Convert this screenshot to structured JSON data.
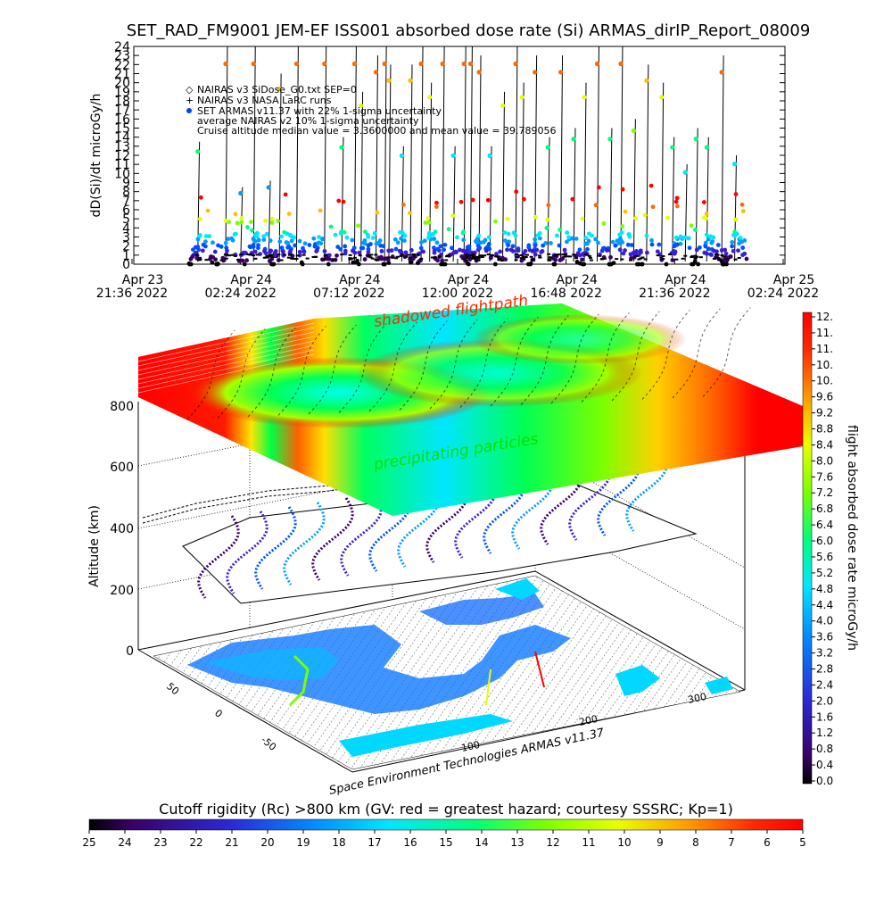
{
  "title": "SET_RAD_FM9001  JEM-EF ISS001 absorbed dose rate (Si) ARMAS_dirIP_Report_08009",
  "chart_data": [
    {
      "type": "scatter",
      "ylabel": "dD(Si)/dt microGy/h",
      "ylim": [
        0,
        24
      ],
      "yticks": [
        "0",
        "1",
        "2",
        "3",
        "4",
        "5",
        "6",
        "7",
        "8",
        "9",
        "10",
        "11",
        "12",
        "13",
        "14",
        "15",
        "16",
        "17",
        "18",
        "19",
        "20",
        "21",
        "22",
        "23",
        "24"
      ],
      "xticks": [
        {
          "line1": "Apr 23",
          "line2": "21:36 2022"
        },
        {
          "line1": "Apr 24",
          "line2": "02:24 2022"
        },
        {
          "line1": "Apr 24",
          "line2": "07:12 2022"
        },
        {
          "line1": "Apr 24",
          "line2": "12:00 2022"
        },
        {
          "line1": "Apr 24",
          "line2": "16:48 2022"
        },
        {
          "line1": "Apr 24",
          "line2": "21:36 2022"
        },
        {
          "line1": "Apr 25",
          "line2": "02:24 2022"
        }
      ],
      "legend": [
        {
          "symbol": "◇",
          "text": "NAIRAS v3 SiDose_G0.txt SEP=0"
        },
        {
          "symbol": "+",
          "text": "NAIRAS v3 NASA LaRC runs"
        },
        {
          "symbol": "●",
          "text": "SET ARMAS v11.37 with 22% 1-sigma uncertainty"
        },
        {
          "symbol": "",
          "text": "average NAIRAS v2 10% 1-sigma uncertainty"
        },
        {
          "symbol": "",
          "text": "Cruise altitude median value = 3.3600000 and mean value = 39.789056"
        }
      ],
      "spikes": [
        {
          "x": 0.4,
          "y": 13.5
        },
        {
          "x": 1.7,
          "y": 24
        },
        {
          "x": 2.4,
          "y": 8.5
        },
        {
          "x": 3.0,
          "y": 24
        },
        {
          "x": 3.7,
          "y": 9.2
        },
        {
          "x": 4.2,
          "y": 21
        },
        {
          "x": 5.0,
          "y": 24
        },
        {
          "x": 6.3,
          "y": 24
        },
        {
          "x": 7.1,
          "y": 14
        },
        {
          "x": 7.7,
          "y": 24
        },
        {
          "x": 8.0,
          "y": 19
        },
        {
          "x": 8.7,
          "y": 23
        },
        {
          "x": 9.1,
          "y": 24
        },
        {
          "x": 9.3,
          "y": 22
        },
        {
          "x": 9.9,
          "y": 13
        },
        {
          "x": 10.3,
          "y": 22
        },
        {
          "x": 10.8,
          "y": 24
        },
        {
          "x": 11.2,
          "y": 20
        },
        {
          "x": 11.8,
          "y": 24
        },
        {
          "x": 12.3,
          "y": 13
        },
        {
          "x": 12.8,
          "y": 24
        },
        {
          "x": 13.1,
          "y": 24
        },
        {
          "x": 13.5,
          "y": 23
        },
        {
          "x": 14.0,
          "y": 13
        },
        {
          "x": 14.6,
          "y": 19
        },
        {
          "x": 15.2,
          "y": 24
        },
        {
          "x": 15.5,
          "y": 20
        },
        {
          "x": 16.1,
          "y": 23
        },
        {
          "x": 16.7,
          "y": 14
        },
        {
          "x": 17.3,
          "y": 23
        },
        {
          "x": 17.9,
          "y": 15
        },
        {
          "x": 18.4,
          "y": 20
        },
        {
          "x": 19.0,
          "y": 24
        },
        {
          "x": 19.6,
          "y": 15
        },
        {
          "x": 20.1,
          "y": 24
        },
        {
          "x": 20.7,
          "y": 16
        },
        {
          "x": 21.3,
          "y": 22
        },
        {
          "x": 22.0,
          "y": 20
        },
        {
          "x": 22.5,
          "y": 14
        },
        {
          "x": 23.1,
          "y": 11
        },
        {
          "x": 23.6,
          "y": 15
        },
        {
          "x": 24.1,
          "y": 14
        },
        {
          "x": 24.8,
          "y": 23
        },
        {
          "x": 25.4,
          "y": 12
        }
      ]
    },
    {
      "type": "heatmap",
      "zlabel": "Altitude (km)",
      "zticks": [
        "0",
        "200",
        "400",
        "600",
        "800"
      ],
      "annotations": [
        "shadowed flightpath",
        "precipitating particles"
      ],
      "xticks": [
        "100",
        "200",
        "300"
      ],
      "yticks": [
        "50",
        "0",
        "-50"
      ],
      "credit": "Space Environment Technologies ARMAS v11.37"
    }
  ],
  "colorbar_right": {
    "label": "flight absorbed dose rate microGy/h",
    "ticks": [
      "12.",
      "11.",
      "11.",
      "10.",
      "10.",
      "9.6",
      "9.2",
      "8.8",
      "8.4",
      "8.0",
      "7.6",
      "7.2",
      "6.8",
      "6.4",
      "6.0",
      "5.6",
      "5.2",
      "4.8",
      "4.4",
      "4.0",
      "3.6",
      "3.2",
      "2.8",
      "2.4",
      "2.0",
      "1.6",
      "1.2",
      "0.8",
      "0.4",
      "0.0"
    ]
  },
  "colorbar_bottom": {
    "label": "Cutoff rigidity (Rc) >800 km (GV: red = greatest hazard; courtesy SSSRC; Kp=1)",
    "ticks": [
      "25",
      "24",
      "23",
      "22",
      "21",
      "20",
      "19",
      "18",
      "17",
      "16",
      "15",
      "14",
      "13",
      "12",
      "11",
      "10",
      "9",
      "8",
      "7",
      "6",
      "5"
    ]
  },
  "colors": {
    "scale": [
      "#000000",
      "#3a0066",
      "#3a1fd0",
      "#0050ff",
      "#009cff",
      "#00e6ff",
      "#00ff7a",
      "#7cff00",
      "#e8ff00",
      "#ffc000",
      "#ff6a00",
      "#ff0000"
    ]
  }
}
